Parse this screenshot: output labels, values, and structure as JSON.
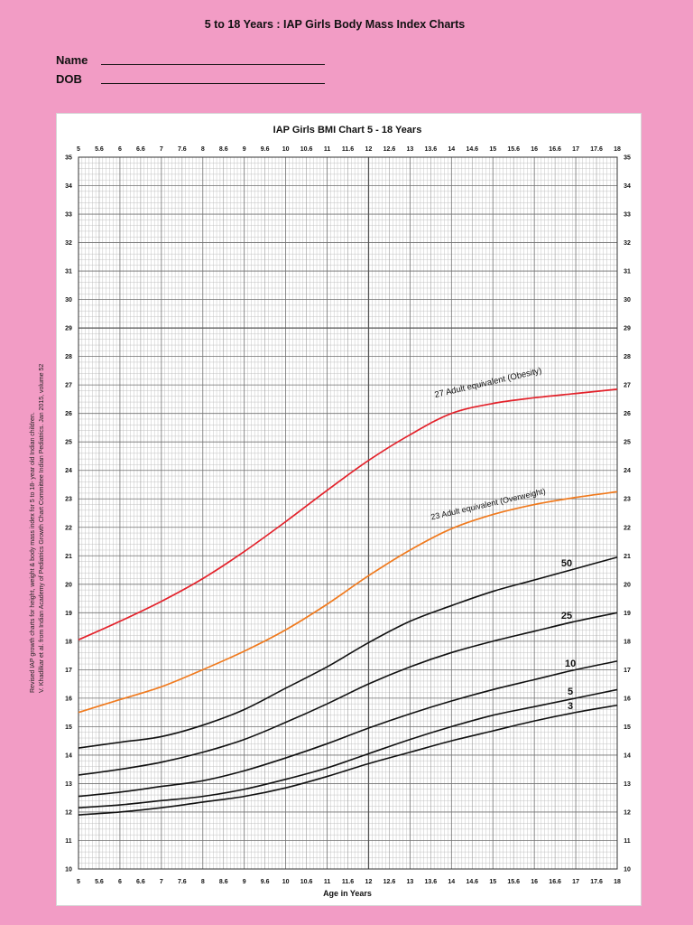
{
  "page": {
    "title": "5 to 18 Years : IAP Girls Body Mass Index Charts",
    "name_label": "Name",
    "dob_label": "DOB",
    "citation_line1": "Revised IAP growth charts for height, weight & body mass index for 5 to 18- year old Indian children.",
    "citation_line2": "V. Khadilkar et al. from Indian Academy of Pediatrics Growth Chart Committee Indian Pediatrics. Jan 2015, volume 52"
  },
  "colors": {
    "background": "#F29CC5",
    "panel": "#FFFFFF",
    "obesity": "#E3222B",
    "overweight": "#F07A1E",
    "percentile": "#111111"
  },
  "chart_data": {
    "type": "line",
    "title": "IAP Girls BMI Chart 5 - 18 Years",
    "xlabel": "Age in Years",
    "xlim": [
      5,
      18
    ],
    "ylim": [
      10,
      35
    ],
    "grid": true,
    "x_tick_labels": [
      "5",
      "5.6",
      "6",
      "6.6",
      "7",
      "7.6",
      "8",
      "8.6",
      "9",
      "9.6",
      "10",
      "10.6",
      "11",
      "11.6",
      "12",
      "12.6",
      "13",
      "13.6",
      "14",
      "14.6",
      "15",
      "15.6",
      "16",
      "16.6",
      "17",
      "17.6",
      "18"
    ],
    "y_tick_labels": [
      "35",
      "34",
      "33",
      "32",
      "31",
      "30",
      "29",
      "28",
      "27",
      "26",
      "25",
      "24",
      "23",
      "22",
      "21",
      "20",
      "19",
      "18",
      "17",
      "16",
      "15",
      "14",
      "13",
      "12",
      "11",
      "10"
    ],
    "x": [
      5,
      6,
      7,
      8,
      9,
      10,
      11,
      12,
      13,
      14,
      15,
      16,
      17,
      18
    ],
    "series": [
      {
        "name": "27 Adult equivalent (Obesity)",
        "color": "#E3222B",
        "values": [
          18.05,
          18.7,
          19.4,
          20.2,
          21.15,
          22.2,
          23.3,
          24.35,
          25.25,
          26.0,
          26.35,
          26.55,
          26.7,
          26.85
        ]
      },
      {
        "name": "23 Adult equivalent (Overweight)",
        "color": "#F07A1E",
        "values": [
          15.5,
          15.95,
          16.4,
          17.0,
          17.65,
          18.4,
          19.3,
          20.3,
          21.2,
          21.95,
          22.45,
          22.8,
          23.05,
          23.25
        ]
      },
      {
        "name": "50",
        "color": "#111111",
        "values": [
          14.25,
          14.45,
          14.65,
          15.05,
          15.6,
          16.35,
          17.1,
          17.95,
          18.7,
          19.25,
          19.75,
          20.15,
          20.55,
          20.95
        ]
      },
      {
        "name": "25",
        "color": "#111111",
        "values": [
          13.3,
          13.5,
          13.75,
          14.1,
          14.55,
          15.15,
          15.8,
          16.5,
          17.1,
          17.6,
          18.0,
          18.35,
          18.7,
          19.0
        ]
      },
      {
        "name": "10",
        "color": "#111111",
        "values": [
          12.55,
          12.7,
          12.9,
          13.1,
          13.45,
          13.9,
          14.4,
          14.95,
          15.45,
          15.9,
          16.3,
          16.65,
          17.0,
          17.3
        ]
      },
      {
        "name": "5",
        "color": "#111111",
        "values": [
          12.15,
          12.25,
          12.4,
          12.55,
          12.8,
          13.15,
          13.55,
          14.05,
          14.55,
          15.0,
          15.4,
          15.7,
          16.0,
          16.3
        ]
      },
      {
        "name": "3",
        "color": "#111111",
        "values": [
          11.9,
          12.0,
          12.15,
          12.35,
          12.55,
          12.85,
          13.25,
          13.7,
          14.1,
          14.5,
          14.85,
          15.2,
          15.5,
          15.75
        ]
      }
    ]
  }
}
